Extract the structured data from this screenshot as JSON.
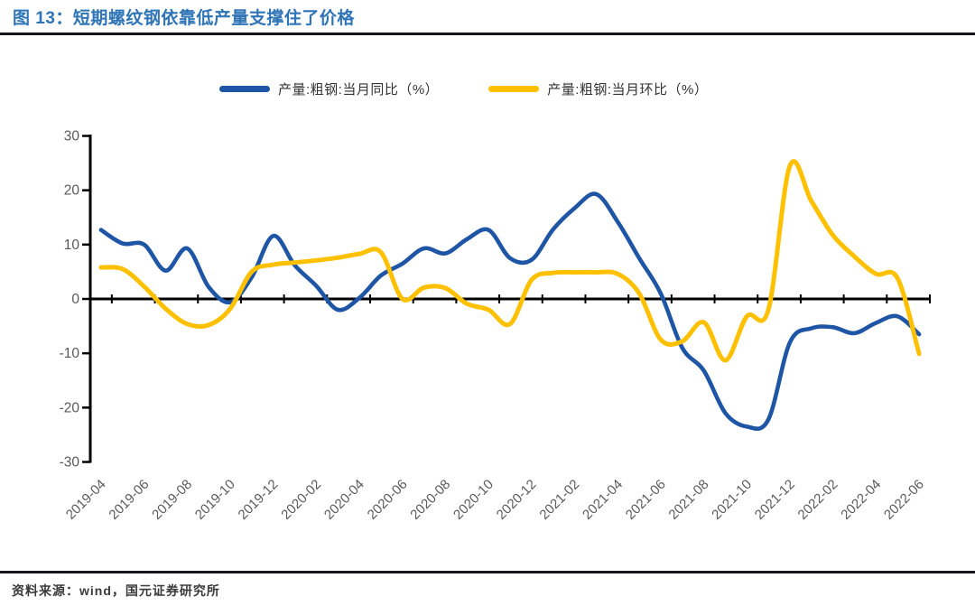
{
  "title": "图 13：短期螺纹钢依靠低产量支撑住了价格",
  "source": "资料来源：wind，国元证券研究所",
  "colors": {
    "title_text": "#2E74B6",
    "rule": "#16161E",
    "axis_line": "#000000",
    "axis_text": "#595959",
    "legend_text": "#333333",
    "series_yoy": "#1F55A5",
    "series_mom": "#FFC000",
    "background": "#FFFFFF",
    "source_text": "#3A3A3A"
  },
  "legend": {
    "items": [
      {
        "label": "产量:粗钢:当月同比（%）",
        "color": "#1F55A5"
      },
      {
        "label": "产量:粗钢:当月环比（%）",
        "color": "#FFC000"
      }
    ]
  },
  "chart_data": {
    "type": "line",
    "smooth": true,
    "grid": false,
    "legend_position": "top",
    "xlabel": "",
    "ylabel": "",
    "ylim": [
      -30,
      30
    ],
    "ytick_interval": 10,
    "yticks": [
      30,
      20,
      10,
      0,
      -10,
      -20,
      -30
    ],
    "x": [
      "2019-04",
      "2019-05",
      "2019-06",
      "2019-07",
      "2019-08",
      "2019-09",
      "2019-10",
      "2019-11",
      "2019-12",
      "2020-01",
      "2020-02",
      "2020-03",
      "2020-04",
      "2020-05",
      "2020-06",
      "2020-07",
      "2020-08",
      "2020-09",
      "2020-10",
      "2020-11",
      "2020-12",
      "2021-01",
      "2021-02",
      "2021-03",
      "2021-04",
      "2021-05",
      "2021-06",
      "2021-07",
      "2021-08",
      "2021-09",
      "2021-10",
      "2021-11",
      "2021-12",
      "2022-01",
      "2022-02",
      "2022-03",
      "2022-04",
      "2022-05",
      "2022-06"
    ],
    "xtick_labels": [
      "2019-04",
      "2019-06",
      "2019-08",
      "2019-10",
      "2019-12",
      "2020-02",
      "2020-04",
      "2020-06",
      "2020-08",
      "2020-10",
      "2020-12",
      "2021-02",
      "2021-04",
      "2021-06",
      "2021-08",
      "2021-10",
      "2021-12",
      "2022-02",
      "2022-04",
      "2022-06"
    ],
    "series": [
      {
        "name": "产量:粗钢:当月同比（%）",
        "color": "#1F55A5",
        "values": [
          12.7,
          10.2,
          10.0,
          5.2,
          9.3,
          2.2,
          -0.6,
          4.0,
          11.6,
          6.2,
          2.4,
          -2.0,
          0.2,
          4.3,
          6.5,
          9.3,
          8.4,
          11.0,
          12.7,
          7.5,
          7.2,
          12.8,
          16.7,
          19.3,
          14.2,
          7.5,
          1.0,
          -9.0,
          -13.2,
          -21.0,
          -23.5,
          -22.2,
          -8.0,
          -5.4,
          -5.2,
          -6.3,
          -4.4,
          -3.2,
          -6.5
        ]
      },
      {
        "name": "产量:粗钢:当月环比（%）",
        "color": "#FFC000",
        "values": [
          5.8,
          5.5,
          2.3,
          -1.8,
          -4.6,
          -4.8,
          -1.8,
          5.0,
          6.3,
          6.7,
          7.1,
          7.6,
          8.3,
          8.6,
          0.0,
          2.1,
          2.0,
          -0.9,
          -2.0,
          -4.6,
          3.5,
          4.8,
          4.9,
          4.9,
          4.6,
          1.0,
          -7.5,
          -7.8,
          -4.3,
          -11.3,
          -3.2,
          -2.0,
          24.5,
          18.0,
          11.7,
          7.8,
          4.6,
          3.8,
          -10.1
        ]
      }
    ]
  }
}
